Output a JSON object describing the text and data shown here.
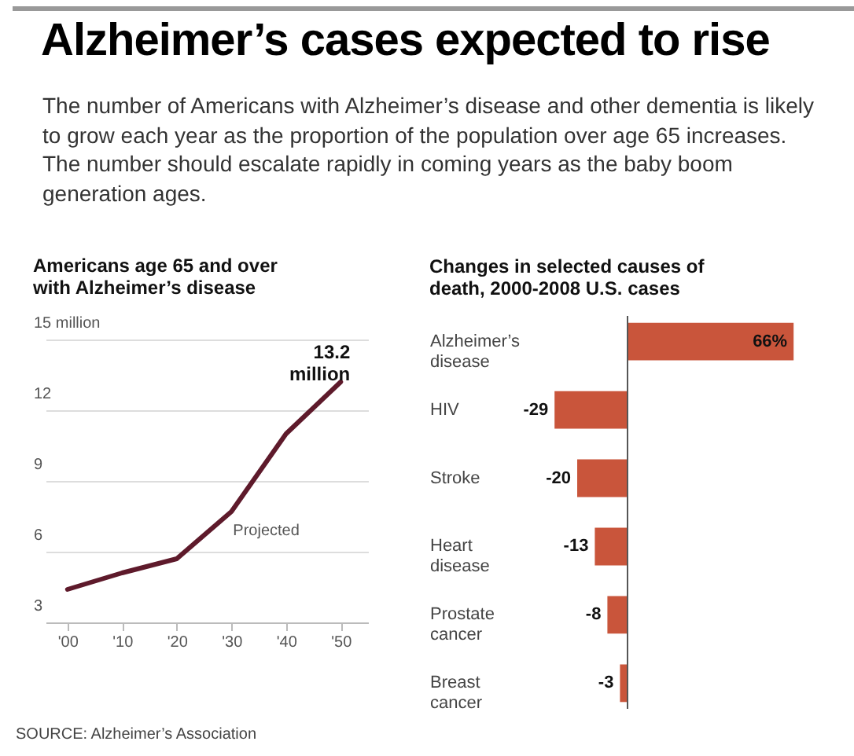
{
  "chart_data": [
    {
      "type": "other",
      "title": "Alzheimer’s cases expected to rise",
      "subtitle": "The number of Americans with Alzheimer’s disease and other dementia is likely to grow each year as the proportion of the population over age 65 increases. The number should escalate rapidly in coming years as the baby boom generation ages.",
      "annotations": [
        "SOURCE: Alzheimer’s Association"
      ]
    },
    {
      "type": "line",
      "title": "Americans age 65 and over with Alzheimer’s disease",
      "x": [
        2000,
        2010,
        2020,
        2030,
        2040,
        2050
      ],
      "series": [
        {
          "color": "#5e1a2b",
          "values": [
            4.4,
            5.1,
            5.7,
            7.7,
            11.0,
            13.2
          ]
        }
      ],
      "xlim": [
        1996,
        2055
      ],
      "xticks": [
        {
          "value": 2000,
          "label": "'00"
        },
        {
          "value": 2010,
          "label": "'10"
        },
        {
          "value": 2020,
          "label": "'20"
        },
        {
          "value": 2030,
          "label": "'30"
        },
        {
          "value": 2040,
          "label": "'40"
        },
        {
          "value": 2050,
          "label": "'50"
        }
      ],
      "ylim": [
        3,
        15
      ],
      "yticks": [
        3,
        6,
        9,
        12,
        {
          "value": 15,
          "label": "15 million"
        }
      ],
      "grid": "y",
      "annotations": [
        {
          "text": "13.2 million",
          "x": 2050,
          "y": 13.2
        },
        {
          "text": "Projected",
          "x": 2028,
          "y": 6.9
        }
      ]
    },
    {
      "type": "bar",
      "orientation": "horizontal",
      "title": "Changes in selected causes of death, 2000-2008 U.S. cases",
      "categories": [
        "Alzheimer’s disease",
        "HIV",
        "Stroke",
        "Heart disease",
        "Prostate cancer",
        "Breast cancer"
      ],
      "values": [
        66,
        -29,
        -20,
        -13,
        -8,
        -3
      ],
      "color": "#c9553b",
      "value_labels": [
        "66%",
        "-29",
        "-20",
        "-13",
        "-8",
        "-3"
      ],
      "ref_lines": [
        {
          "axis": "x",
          "value": 0
        }
      ]
    }
  ]
}
